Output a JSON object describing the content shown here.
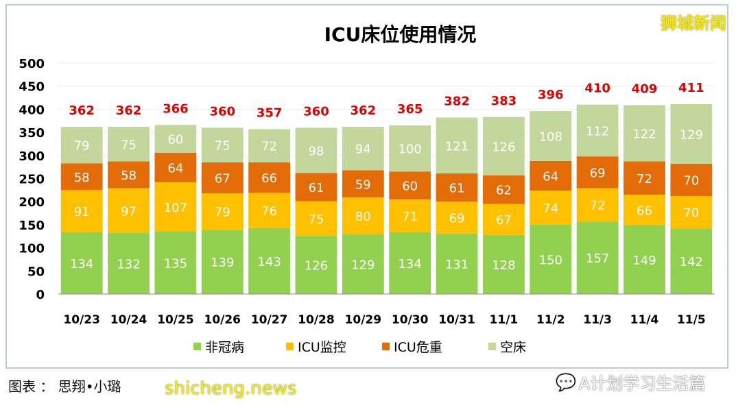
{
  "chart_data": {
    "type": "bar",
    "stacked": true,
    "title": "ICU床位使用情况",
    "categories": [
      "10/23",
      "10/24",
      "10/25",
      "10/26",
      "10/27",
      "10/28",
      "10/29",
      "10/30",
      "10/31",
      "11/1",
      "11/2",
      "11/3",
      "11/4",
      "11/5"
    ],
    "series": [
      {
        "name": "非冠病",
        "color": "#92d050",
        "values": [
          134,
          132,
          135,
          139,
          143,
          126,
          129,
          134,
          131,
          128,
          150,
          157,
          149,
          142
        ]
      },
      {
        "name": "ICU监控",
        "color": "#ffc000",
        "values": [
          91,
          97,
          107,
          79,
          76,
          75,
          80,
          71,
          69,
          67,
          74,
          72,
          66,
          70
        ]
      },
      {
        "name": "ICU危重",
        "color": "#e36c09",
        "values": [
          58,
          58,
          64,
          67,
          66,
          61,
          59,
          60,
          61,
          62,
          64,
          69,
          72,
          70
        ]
      },
      {
        "name": "空床",
        "color": "#c3d69b",
        "values": [
          79,
          75,
          60,
          75,
          72,
          98,
          94,
          100,
          121,
          126,
          108,
          112,
          122,
          129
        ]
      }
    ],
    "totals": [
      362,
      362,
      366,
      360,
      357,
      360,
      362,
      365,
      382,
      383,
      396,
      410,
      409,
      411
    ],
    "total_color": "#e00000",
    "ylim": [
      0,
      500
    ],
    "yticks": [
      0,
      50,
      100,
      150,
      200,
      250,
      300,
      350,
      400,
      450,
      500
    ],
    "grid": true,
    "legend": "bottom"
  },
  "watermarks": {
    "top_right": "狮城新闻",
    "site": "shicheng.news",
    "wechat": "A计划学习生活篇"
  },
  "caption": "图表 ： 思翔•小璐"
}
